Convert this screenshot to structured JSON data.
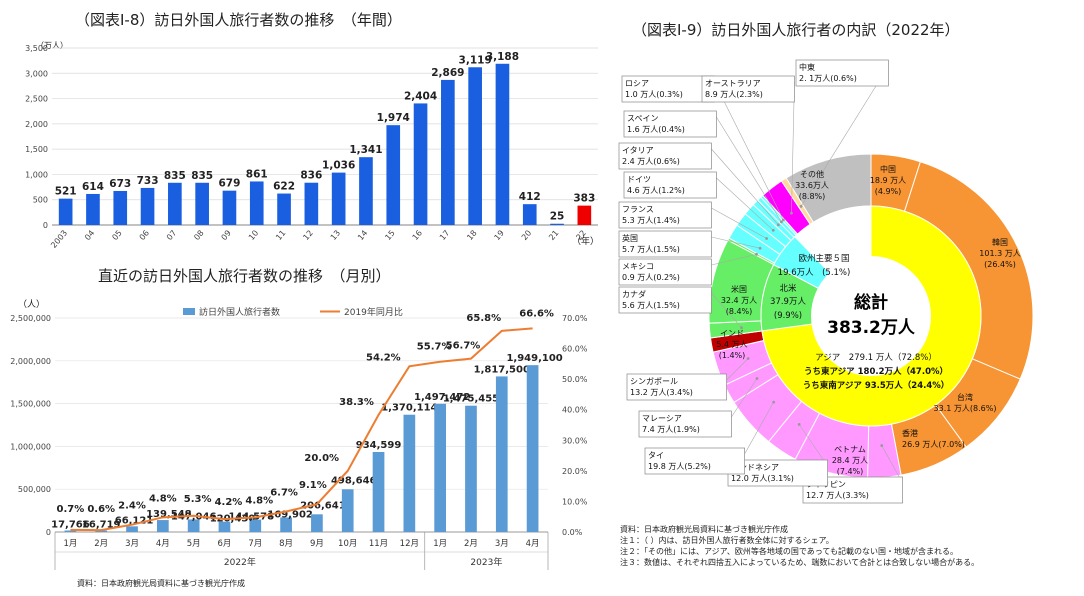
{
  "chart_data": [
    {
      "type": "bar",
      "title": "（図表Ⅰ-8）訪日外国人旅行者数の推移　（年間）",
      "ylabel": "（万人）",
      "xlabel": "（年）",
      "ylim": [
        0,
        3500
      ],
      "yticks": [
        "0",
        "500",
        "1,000",
        "1,500",
        "2,000",
        "2,500",
        "3,000",
        "3,500"
      ],
      "categories": [
        "2003",
        "04",
        "05",
        "06",
        "07",
        "08",
        "09",
        "10",
        "11",
        "12",
        "13",
        "14",
        "15",
        "16",
        "17",
        "18",
        "19",
        "20",
        "21",
        "22"
      ],
      "values": [
        521,
        614,
        673,
        733,
        835,
        835,
        679,
        861,
        622,
        836,
        1036,
        1341,
        1974,
        2404,
        2869,
        3119,
        3188,
        412,
        25,
        383
      ],
      "labels": [
        "521",
        "614",
        "673",
        "733",
        "835",
        "835",
        "679",
        "861",
        "622",
        "836",
        "1,036",
        "1,341",
        "1,974",
        "2,404",
        "2,869",
        "3,119",
        "3,188",
        "412",
        "25",
        "383"
      ],
      "colors": {
        "normal": "#1a5fe0",
        "highlight": "#ee0000"
      },
      "highlight_index": 19
    },
    {
      "type": "bar+line",
      "title": "直近の訪日外国人旅行者数の推移　（月別）",
      "ylabel": "（人）",
      "ylim": [
        0,
        2500000
      ],
      "y2lim": [
        0,
        70
      ],
      "yticks": [
        "0",
        "500,000",
        "1,000,000",
        "1,500,000",
        "2,000,000",
        "2,500,000"
      ],
      "y2ticks": [
        "0.0%",
        "10.0%",
        "20.0%",
        "30.0%",
        "40.0%",
        "50.0%",
        "60.0%",
        "70.0%"
      ],
      "categories": [
        "1月",
        "2月",
        "3月",
        "4月",
        "5月",
        "6月",
        "7月",
        "8月",
        "9月",
        "10月",
        "11月",
        "12月",
        "1月",
        "2月",
        "3月",
        "4月"
      ],
      "groups": [
        {
          "label": "2022年",
          "count": 12
        },
        {
          "label": "2023年",
          "count": 4
        }
      ],
      "series": [
        {
          "name": "訪日外国人旅行者数",
          "type": "bar",
          "color": "#5b9bd5",
          "values": [
            17766,
            16719,
            66121,
            139548,
            147046,
            120430,
            144578,
            169902,
            206641,
            498646,
            934599,
            1370114,
            1497472,
            1475455,
            1817500,
            1949100
          ],
          "labels": [
            "17,766",
            "16,719",
            "66,121",
            "139,548",
            "147,046",
            "120,430",
            "144,578",
            "169,902",
            "206,641",
            "498,646",
            "934,599",
            "1,370,114",
            "1,497,472",
            "1,475,455",
            "1,817,500",
            "1,949,100"
          ]
        },
        {
          "name": "2019年同月比",
          "type": "line",
          "color": "#ed7d31",
          "values": [
            0.7,
            0.6,
            2.4,
            4.8,
            5.3,
            4.2,
            4.8,
            6.7,
            9.1,
            20.0,
            38.3,
            54.2,
            55.7,
            56.7,
            65.8,
            66.6
          ],
          "labels": [
            "0.7%",
            "0.6%",
            "2.4%",
            "4.8%",
            "5.3%",
            "4.2%",
            "4.8%",
            "6.7%",
            "9.1%",
            "20.0%",
            "38.3%",
            "54.2%",
            "55.7%",
            "56.7%",
            "65.8%",
            "66.6%"
          ]
        }
      ],
      "source": "資料：日本政府観光局資料に基づき観光庁作成"
    },
    {
      "type": "pie",
      "title": "（図表Ⅰ-9）訪日外国人旅行者の内訳（2022年）",
      "total_label": "総計",
      "total_value": "383.2万人",
      "slices": [
        {
          "name": "中国",
          "value": 18.9,
          "label1": "中国",
          "label2": "18.9 万人",
          "label3": "(4.9%)",
          "color": "#f79433"
        },
        {
          "name": "韓国",
          "value": 101.3,
          "label1": "韓国",
          "label2": "101.3 万人",
          "label3": "(26.4%)",
          "color": "#f79433"
        },
        {
          "name": "台湾",
          "value": 33.1,
          "label1": "台湾",
          "label2": "33.1 万人(8.6%)",
          "label3": "",
          "color": "#f79433"
        },
        {
          "name": "香港",
          "value": 26.9,
          "label1": "香港",
          "label2": "26.9 万人(7.0%)",
          "label3": "",
          "color": "#f79433"
        },
        {
          "name": "フィリピン",
          "value": 12.7,
          "label1": "フィリピン",
          "label2": "12.7 万人(3.3%)",
          "label3": "",
          "color": "#ff99ff"
        },
        {
          "name": "ベトナム",
          "value": 28.4,
          "label1": "ベトナム",
          "label2": "28.4 万人",
          "label3": "(7.4%)",
          "color": "#ff99ff"
        },
        {
          "name": "インドネシア",
          "value": 12.0,
          "label1": "インドネシア",
          "label2": "12.0 万人(3.1%)",
          "label3": "",
          "color": "#ff99ff"
        },
        {
          "name": "タイ",
          "value": 19.8,
          "label1": "タイ",
          "label2": "19.8 万人(5.2%)",
          "label3": "",
          "color": "#ff99ff"
        },
        {
          "name": "マレーシア",
          "value": 7.4,
          "label1": "マレーシア",
          "label2": "7.4 万人(1.9%)",
          "label3": "",
          "color": "#ff99ff"
        },
        {
          "name": "シンガポール",
          "value": 13.2,
          "label1": "シンガポール",
          "label2": "13.2 万人(3.4%)",
          "label3": "",
          "color": "#ff99ff"
        },
        {
          "name": "インド",
          "value": 5.4,
          "label1": "インド",
          "label2": "5.4 万人",
          "label3": "(1.4%)",
          "color": "#c00000"
        },
        {
          "name": "カナダ",
          "value": 5.6,
          "label1": "カナダ",
          "label2": "5.6 万人(1.5%)",
          "label3": "",
          "color": "#66ee66"
        },
        {
          "name": "米国",
          "value": 32.4,
          "label1": "米国",
          "label2": "32.4 万人",
          "label3": "(8.4%)",
          "color": "#66ee66"
        },
        {
          "name": "メキシコ",
          "value": 0.9,
          "label1": "メキシコ",
          "label2": "0.9 万人(0.2%)",
          "label3": "",
          "color": "#66ee66"
        },
        {
          "name": "英国",
          "value": 5.7,
          "label1": "英国",
          "label2": "5.7 万人(1.5%)",
          "label3": "",
          "color": "#66ffff"
        },
        {
          "name": "フランス",
          "value": 5.3,
          "label1": "フランス",
          "label2": "5.3 万人(1.4%)",
          "label3": "",
          "color": "#66ffff"
        },
        {
          "name": "ドイツ",
          "value": 4.6,
          "label1": "ドイツ",
          "label2": "4.6 万人(1.2%)",
          "label3": "",
          "color": "#66ffff"
        },
        {
          "name": "イタリア",
          "value": 2.4,
          "label1": "イタリア",
          "label2": "2.4 万人(0.6%)",
          "label3": "",
          "color": "#66ffff"
        },
        {
          "name": "スペイン",
          "value": 1.6,
          "label1": "スペイン",
          "label2": "1.6 万人(0.4%)",
          "label3": "",
          "color": "#66ffff"
        },
        {
          "name": "ロシア",
          "value": 1.0,
          "label1": "ロシア",
          "label2": "1.0 万人(0.3%)",
          "label3": "",
          "color": "#66ffff"
        },
        {
          "name": "オーストラリア",
          "value": 8.9,
          "label1": "オーストラリア",
          "label2": "8.9 万人(2.3%)",
          "label3": "",
          "color": "#ff00ff"
        },
        {
          "name": "中東",
          "value": 2.1,
          "label1": "中東",
          "label2": "2. 1万人(0.6%)",
          "label3": "",
          "color": "#ffd9a0"
        },
        {
          "name": "その他",
          "value": 33.6,
          "label1": "その他",
          "label2": "33.6万人",
          "label3": "(8.8%)",
          "color": "#c0c0c0"
        }
      ],
      "inner_ring": [
        {
          "name": "アジア",
          "value": 279.1,
          "color": "#ffff00",
          "text1": "アジア　279.1 万人（72.8%）",
          "text2": "うち東アジア 180.2万人（47.0%）",
          "text3": "うち東南アジア 93.5万人（24.4%）"
        },
        {
          "name": "北米",
          "value": 37.9,
          "color": "#66ee66",
          "text1": "北米",
          "text2": "37.9万人",
          "text3": "(9.9%)"
        },
        {
          "name": "欧州主要５国",
          "value": 19.6,
          "color": "#66ffff",
          "text1": "欧州主要５国",
          "text2": "19.6万人　(5.1%)",
          "text3": ""
        },
        {
          "name": "その他",
          "value": 46.6,
          "color": "#ffffff",
          "text1": "",
          "text2": "",
          "text3": ""
        }
      ],
      "notes": [
        "資料：日本政府観光局資料に基づき観光庁作成",
        "注１：（ ）内は、訪日外国人旅行者数全体に対するシェア。",
        "注２：「その他」には、アジア、欧州等各地域の国であっても記載のない国・地域が含まれる。",
        "注３：数値は、それぞれ四捨五入によっているため、端数において合計とは合致しない場合がある。"
      ]
    }
  ]
}
